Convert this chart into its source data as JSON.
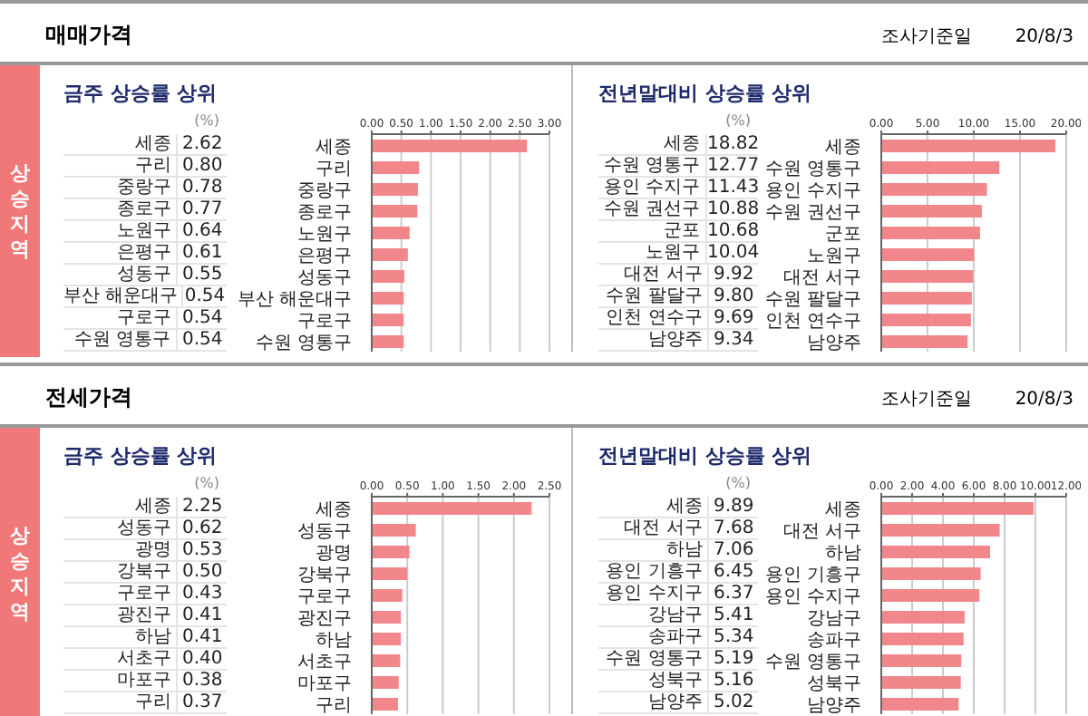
{
  "chart_data": [
    {
      "type": "bar",
      "orientation": "horizontal",
      "title": "금주 상승률 상위",
      "categories": [
        "세종",
        "구리",
        "중랑구",
        "종로구",
        "노원구",
        "은평구",
        "성동구",
        "부산 해운대구",
        "구로구",
        "수원 영통구"
      ],
      "values": [
        2.62,
        0.8,
        0.78,
        0.77,
        0.64,
        0.61,
        0.55,
        0.54,
        0.54,
        0.54
      ],
      "value_labels": [
        "2.62",
        "0.80",
        "0.78",
        "0.77",
        "0.64",
        "0.61",
        "0.55",
        "0.54",
        "0.54",
        "0.54"
      ],
      "color": "#f2878b",
      "xlim": [
        0,
        3
      ],
      "xticks": [
        {
          "value": 0,
          "label": "0.00"
        },
        {
          "value": 0.5,
          "label": "0.50"
        },
        {
          "value": 1,
          "label": "1.00"
        },
        {
          "value": 1.5,
          "label": "1.50"
        },
        {
          "value": 2,
          "label": "2.00"
        },
        {
          "value": 2.5,
          "label": "2.50"
        },
        {
          "value": 3,
          "label": "3.00"
        }
      ],
      "grid": "x",
      "annotations": [
        "매매가격",
        "상승지역",
        "(%)"
      ]
    },
    {
      "type": "bar",
      "orientation": "horizontal",
      "title": "전년말대비 상승률 상위",
      "categories": [
        "세종",
        "수원 영통구",
        "용인 수지구",
        "수원 권선구",
        "군포",
        "노원구",
        "대전 서구",
        "수원 팔달구",
        "인천 연수구",
        "남양주"
      ],
      "values": [
        18.82,
        12.77,
        11.43,
        10.88,
        10.68,
        10.04,
        9.92,
        9.8,
        9.69,
        9.34
      ],
      "value_labels": [
        "18.82",
        "12.77",
        "11.43",
        "10.88",
        "10.68",
        "10.04",
        "9.92",
        "9.80",
        "9.69",
        "9.34"
      ],
      "color": "#f2878b",
      "xlim": [
        0,
        20
      ],
      "xticks": [
        {
          "value": 0,
          "label": "0.00"
        },
        {
          "value": 5,
          "label": "5.00"
        },
        {
          "value": 10,
          "label": "10.00"
        },
        {
          "value": 15,
          "label": "15.00"
        },
        {
          "value": 20,
          "label": "20.00"
        }
      ],
      "grid": "x",
      "annotations": [
        "조사기준일",
        "20/8/3",
        "(%)"
      ]
    },
    {
      "type": "bar",
      "orientation": "horizontal",
      "title": "금주 상승률 상위",
      "categories": [
        "세종",
        "성동구",
        "광명",
        "강북구",
        "구로구",
        "광진구",
        "하남",
        "서초구",
        "마포구",
        "구리"
      ],
      "values": [
        2.25,
        0.62,
        0.53,
        0.5,
        0.43,
        0.41,
        0.41,
        0.4,
        0.38,
        0.37
      ],
      "value_labels": [
        "2.25",
        "0.62",
        "0.53",
        "0.50",
        "0.43",
        "0.41",
        "0.41",
        "0.40",
        "0.38",
        "0.37"
      ],
      "color": "#f2878b",
      "xlim": [
        0,
        2.5
      ],
      "xticks": [
        {
          "value": 0,
          "label": "0.00"
        },
        {
          "value": 0.5,
          "label": "0.50"
        },
        {
          "value": 1,
          "label": "1.00"
        },
        {
          "value": 1.5,
          "label": "1.50"
        },
        {
          "value": 2,
          "label": "2.00"
        },
        {
          "value": 2.5,
          "label": "2.50"
        }
      ],
      "grid": "x",
      "annotations": [
        "전세가격",
        "상승지역",
        "(%)"
      ]
    },
    {
      "type": "bar",
      "orientation": "horizontal",
      "title": "전년말대비 상승률 상위",
      "categories": [
        "세종",
        "대전 서구",
        "하남",
        "용인 기흥구",
        "용인 수지구",
        "강남구",
        "송파구",
        "수원 영통구",
        "성북구",
        "남양주"
      ],
      "values": [
        9.89,
        7.68,
        7.06,
        6.45,
        6.37,
        5.41,
        5.34,
        5.19,
        5.16,
        5.02
      ],
      "value_labels": [
        "9.89",
        "7.68",
        "7.06",
        "6.45",
        "6.37",
        "5.41",
        "5.34",
        "5.19",
        "5.16",
        "5.02"
      ],
      "color": "#f2878b",
      "xlim": [
        0,
        12
      ],
      "xticks": [
        {
          "value": 0,
          "label": "0.00"
        },
        {
          "value": 2,
          "label": "2.00"
        },
        {
          "value": 4,
          "label": "4.00"
        },
        {
          "value": 6,
          "label": "6.00"
        },
        {
          "value": 8,
          "label": "8.00"
        },
        {
          "value": 10,
          "label": "10.00"
        },
        {
          "value": 12,
          "label": "12.00"
        }
      ],
      "grid": "x",
      "annotations": [
        "조사기준일",
        "20/8/3",
        "(%)"
      ]
    }
  ]
}
